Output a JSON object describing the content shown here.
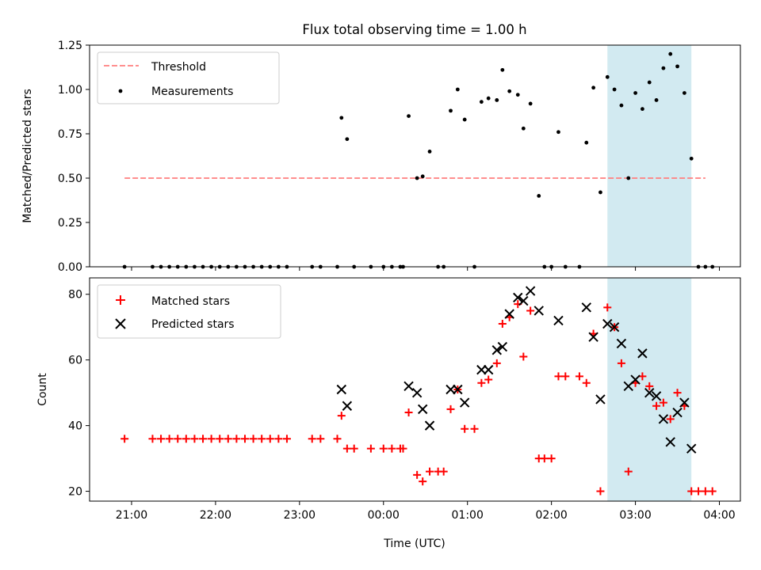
{
  "figure": {
    "title": "Flux total observing time = 1.00 h",
    "xlabel": "Time (UTC)"
  },
  "chart_data": [
    {
      "type": "scatter",
      "ylabel": "Matched/Predicted stars",
      "ylim": [
        0,
        1.25
      ],
      "yticks": [
        0,
        0.25,
        0.5,
        0.75,
        1.0,
        1.25
      ],
      "ytick_labels": [
        "0.00",
        "0.25",
        "0.50",
        "0.75",
        "1.00",
        "1.25"
      ],
      "xlim": [
        "2024-01-01T20:30",
        "2024-01-02T04:15"
      ],
      "xticks": [
        "21:00",
        "22:00",
        "23:00",
        "00:00",
        "01:00",
        "02:00",
        "03:00",
        "04:00"
      ],
      "legend_position": "top-left",
      "shaded_region": {
        "from": "02:40",
        "to": "03:40",
        "color": "#add8e6"
      },
      "threshold": {
        "name": "Threshold",
        "value": 0.5,
        "from": "20:55",
        "to": "03:50",
        "color": "#ff7f7f"
      },
      "series": [
        {
          "name": "Measurements",
          "color": "#000000",
          "points": [
            [
              "20:55",
              0
            ],
            [
              "21:15",
              0
            ],
            [
              "21:21",
              0
            ],
            [
              "21:27",
              0
            ],
            [
              "21:33",
              0
            ],
            [
              "21:39",
              0
            ],
            [
              "21:45",
              0
            ],
            [
              "21:51",
              0
            ],
            [
              "21:57",
              0
            ],
            [
              "22:03",
              0
            ],
            [
              "22:09",
              0
            ],
            [
              "22:15",
              0
            ],
            [
              "22:21",
              0
            ],
            [
              "22:27",
              0
            ],
            [
              "22:33",
              0
            ],
            [
              "22:39",
              0
            ],
            [
              "22:45",
              0
            ],
            [
              "22:51",
              0
            ],
            [
              "23:09",
              0
            ],
            [
              "23:15",
              0
            ],
            [
              "23:27",
              0
            ],
            [
              "23:30",
              0.84
            ],
            [
              "23:34",
              0.72
            ],
            [
              "23:39",
              0
            ],
            [
              "23:51",
              0
            ],
            [
              "24:00",
              0
            ],
            [
              "24:06",
              0
            ],
            [
              "24:12",
              0
            ],
            [
              "24:14",
              0
            ],
            [
              "24:18",
              0.85
            ],
            [
              "24:24",
              0.5
            ],
            [
              "24:28",
              0.51
            ],
            [
              "24:33",
              0.65
            ],
            [
              "24:39",
              0
            ],
            [
              "24:43",
              0
            ],
            [
              "24:48",
              0.88
            ],
            [
              "24:53",
              1.0
            ],
            [
              "24:58",
              0.83
            ],
            [
              "25:05",
              0
            ],
            [
              "25:10",
              0.93
            ],
            [
              "25:15",
              0.95
            ],
            [
              "25:21",
              0.94
            ],
            [
              "25:25",
              1.11
            ],
            [
              "25:30",
              0.99
            ],
            [
              "25:36",
              0.97
            ],
            [
              "25:40",
              0.78
            ],
            [
              "25:45",
              0.92
            ],
            [
              "25:51",
              0.4
            ],
            [
              "25:55",
              0
            ],
            [
              "26:00",
              0
            ],
            [
              "26:05",
              0.76
            ],
            [
              "26:10",
              0
            ],
            [
              "26:20",
              0
            ],
            [
              "26:25",
              0.7
            ],
            [
              "26:30",
              1.01
            ],
            [
              "26:35",
              0.42
            ],
            [
              "26:40",
              1.07
            ],
            [
              "26:45",
              1.0
            ],
            [
              "26:50",
              0.91
            ],
            [
              "26:55",
              0.5
            ],
            [
              "27:00",
              0.98
            ],
            [
              "27:05",
              0.89
            ],
            [
              "27:10",
              1.04
            ],
            [
              "27:15",
              0.94
            ],
            [
              "27:20",
              1.12
            ],
            [
              "27:25",
              1.2
            ],
            [
              "27:30",
              1.13
            ],
            [
              "27:35",
              0.98
            ],
            [
              "27:40",
              0.61
            ],
            [
              "27:45",
              0
            ],
            [
              "27:50",
              0
            ],
            [
              "27:55",
              0
            ]
          ]
        }
      ]
    },
    {
      "type": "scatter",
      "ylabel": "Count",
      "ylim": [
        17,
        85
      ],
      "yticks": [
        20,
        40,
        60,
        80
      ],
      "ytick_labels": [
        "20",
        "40",
        "60",
        "80"
      ],
      "xlim": [
        "2024-01-01T20:30",
        "2024-01-02T04:15"
      ],
      "xticks": [
        "21:00",
        "22:00",
        "23:00",
        "00:00",
        "01:00",
        "02:00",
        "03:00",
        "04:00"
      ],
      "xtick_labels": [
        "21:00",
        "22:00",
        "23:00",
        "00:00",
        "01:00",
        "02:00",
        "03:00",
        "04:00"
      ],
      "legend_position": "top-left",
      "shaded_region": {
        "from": "02:40",
        "to": "03:40",
        "color": "#add8e6"
      },
      "series": [
        {
          "name": "Matched stars",
          "color": "#ff0000",
          "marker": "plus",
          "points": [
            [
              "20:55",
              36
            ],
            [
              "21:15",
              36
            ],
            [
              "21:21",
              36
            ],
            [
              "21:27",
              36
            ],
            [
              "21:33",
              36
            ],
            [
              "21:39",
              36
            ],
            [
              "21:45",
              36
            ],
            [
              "21:51",
              36
            ],
            [
              "21:57",
              36
            ],
            [
              "22:03",
              36
            ],
            [
              "22:09",
              36
            ],
            [
              "22:15",
              36
            ],
            [
              "22:21",
              36
            ],
            [
              "22:27",
              36
            ],
            [
              "22:33",
              36
            ],
            [
              "22:39",
              36
            ],
            [
              "22:45",
              36
            ],
            [
              "22:51",
              36
            ],
            [
              "23:09",
              36
            ],
            [
              "23:15",
              36
            ],
            [
              "23:27",
              36
            ],
            [
              "23:30",
              43
            ],
            [
              "23:34",
              33
            ],
            [
              "23:39",
              33
            ],
            [
              "23:51",
              33
            ],
            [
              "24:00",
              33
            ],
            [
              "24:06",
              33
            ],
            [
              "24:12",
              33
            ],
            [
              "24:14",
              33
            ],
            [
              "24:18",
              44
            ],
            [
              "24:24",
              25
            ],
            [
              "24:28",
              23
            ],
            [
              "24:33",
              26
            ],
            [
              "24:39",
              26
            ],
            [
              "24:43",
              26
            ],
            [
              "24:48",
              45
            ],
            [
              "24:53",
              51
            ],
            [
              "24:58",
              39
            ],
            [
              "25:05",
              39
            ],
            [
              "25:10",
              53
            ],
            [
              "25:15",
              54
            ],
            [
              "25:21",
              59
            ],
            [
              "25:25",
              71
            ],
            [
              "25:30",
              73
            ],
            [
              "25:36",
              77
            ],
            [
              "25:40",
              61
            ],
            [
              "25:45",
              75
            ],
            [
              "25:51",
              30
            ],
            [
              "25:55",
              30
            ],
            [
              "26:00",
              30
            ],
            [
              "26:05",
              55
            ],
            [
              "26:10",
              55
            ],
            [
              "26:20",
              55
            ],
            [
              "26:25",
              53
            ],
            [
              "26:30",
              68
            ],
            [
              "26:35",
              20
            ],
            [
              "26:40",
              76
            ],
            [
              "26:45",
              70
            ],
            [
              "26:50",
              59
            ],
            [
              "26:55",
              26
            ],
            [
              "27:00",
              53
            ],
            [
              "27:05",
              55
            ],
            [
              "27:10",
              52
            ],
            [
              "27:15",
              46
            ],
            [
              "27:20",
              47
            ],
            [
              "27:25",
              42
            ],
            [
              "27:30",
              50
            ],
            [
              "27:35",
              46
            ],
            [
              "27:40",
              20
            ],
            [
              "27:45",
              20
            ],
            [
              "27:50",
              20
            ],
            [
              "27:55",
              20
            ]
          ]
        },
        {
          "name": "Predicted stars",
          "color": "#000000",
          "marker": "x",
          "points": [
            [
              "23:30",
              51
            ],
            [
              "23:34",
              46
            ],
            [
              "24:18",
              52
            ],
            [
              "24:24",
              50
            ],
            [
              "24:28",
              45
            ],
            [
              "24:33",
              40
            ],
            [
              "24:48",
              51
            ],
            [
              "24:53",
              51
            ],
            [
              "24:58",
              47
            ],
            [
              "25:10",
              57
            ],
            [
              "25:15",
              57
            ],
            [
              "25:21",
              63
            ],
            [
              "25:25",
              64
            ],
            [
              "25:30",
              74
            ],
            [
              "25:36",
              79
            ],
            [
              "25:40",
              78
            ],
            [
              "25:45",
              81
            ],
            [
              "25:51",
              75
            ],
            [
              "26:05",
              72
            ],
            [
              "26:25",
              76
            ],
            [
              "26:30",
              67
            ],
            [
              "26:35",
              48
            ],
            [
              "26:40",
              71
            ],
            [
              "26:45",
              70
            ],
            [
              "26:50",
              65
            ],
            [
              "26:55",
              52
            ],
            [
              "27:00",
              54
            ],
            [
              "27:05",
              62
            ],
            [
              "27:10",
              50
            ],
            [
              "27:15",
              49
            ],
            [
              "27:20",
              42
            ],
            [
              "27:25",
              35
            ],
            [
              "27:30",
              44
            ],
            [
              "27:35",
              47
            ],
            [
              "27:40",
              33
            ]
          ]
        }
      ]
    }
  ]
}
